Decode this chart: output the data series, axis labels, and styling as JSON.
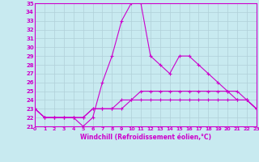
{
  "xlabel": "Windchill (Refroidissement éolien,°C)",
  "x": [
    0,
    1,
    2,
    3,
    4,
    5,
    6,
    7,
    8,
    9,
    10,
    11,
    12,
    13,
    14,
    15,
    16,
    17,
    18,
    19,
    20,
    21,
    22,
    23
  ],
  "line1": [
    23,
    22,
    22,
    22,
    22,
    21,
    22,
    26,
    29,
    33,
    35,
    35,
    29,
    28,
    27,
    29,
    29,
    28,
    27,
    26,
    25,
    24,
    24,
    23
  ],
  "line2": [
    23,
    22,
    22,
    22,
    22,
    22,
    23,
    23,
    23,
    23,
    24,
    24,
    24,
    24,
    24,
    24,
    24,
    24,
    24,
    24,
    24,
    24,
    24,
    23
  ],
  "line3": [
    23,
    22,
    22,
    22,
    22,
    22,
    23,
    23,
    23,
    24,
    24,
    25,
    25,
    25,
    25,
    25,
    25,
    25,
    25,
    25,
    25,
    25,
    24,
    23
  ],
  "color": "#cc00cc",
  "bg_color": "#c8eaf0",
  "grid_color": "#b0d0d8",
  "ylim_min": 21,
  "ylim_max": 35,
  "xlim_min": 0,
  "xlim_max": 23
}
